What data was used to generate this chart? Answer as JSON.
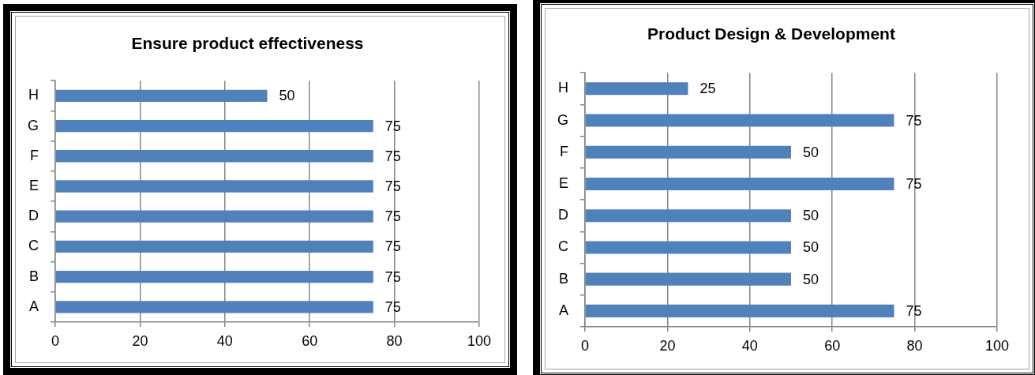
{
  "chart_data": [
    {
      "type": "bar",
      "title": "Ensure product effectiveness",
      "orientation": "horizontal",
      "categories": [
        "H",
        "G",
        "F",
        "E",
        "D",
        "C",
        "B",
        "A"
      ],
      "values": [
        50,
        75,
        75,
        75,
        75,
        75,
        75,
        75
      ],
      "color": "#4f81bd",
      "xlim": [
        0,
        100
      ],
      "xticks": [
        0,
        20,
        40,
        60,
        80,
        100
      ],
      "grid": "x",
      "data_labels": true
    },
    {
      "type": "bar",
      "title": "Product Design & Development",
      "orientation": "horizontal",
      "categories": [
        "H",
        "G",
        "F",
        "E",
        "D",
        "C",
        "B",
        "A"
      ],
      "values": [
        25,
        75,
        50,
        75,
        50,
        50,
        50,
        75
      ],
      "color": "#4f81bd",
      "xlim": [
        0,
        100
      ],
      "xticks": [
        0,
        20,
        40,
        60,
        80,
        100
      ],
      "grid": "x",
      "data_labels": true
    }
  ]
}
